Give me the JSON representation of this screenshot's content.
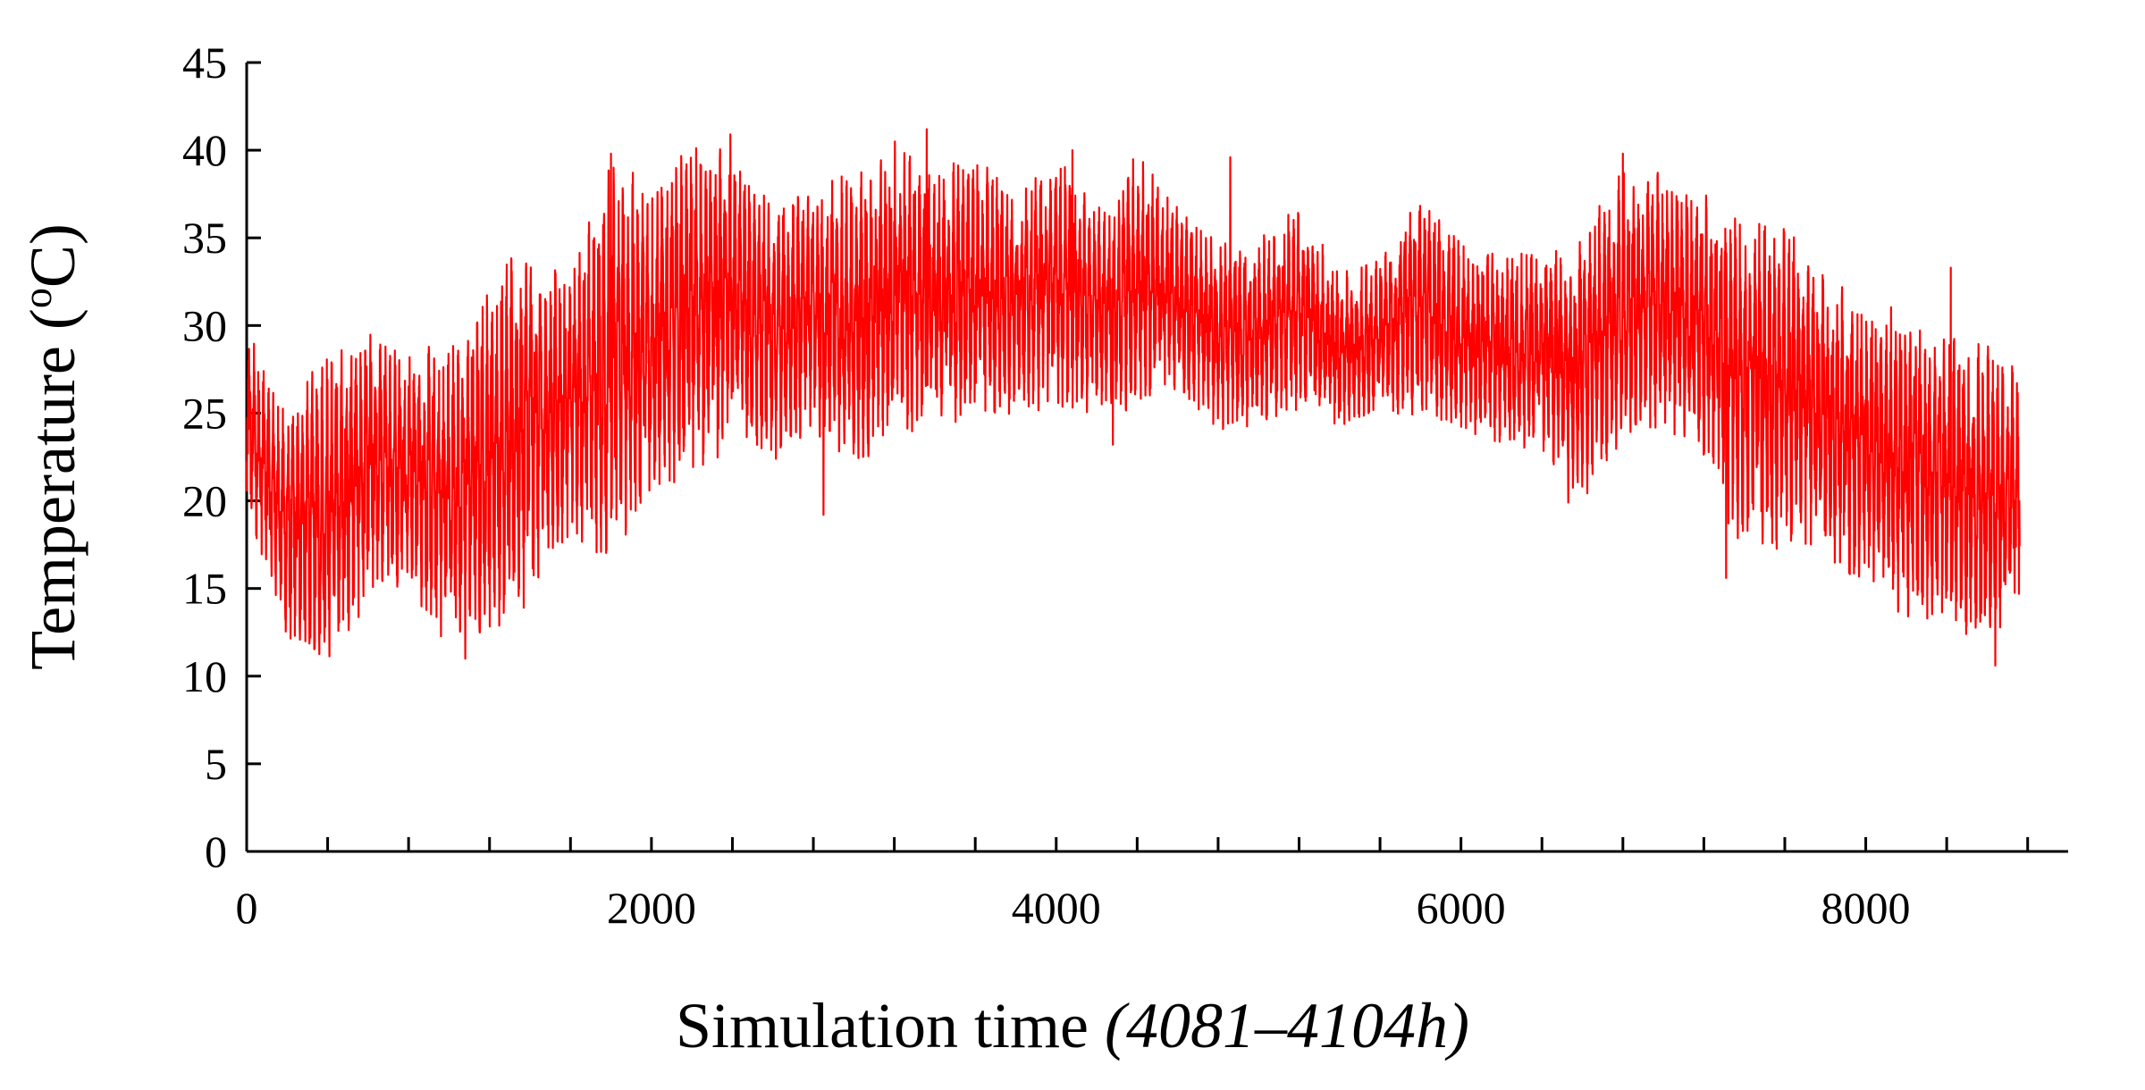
{
  "chart_data": {
    "type": "line",
    "title": "",
    "xlabel": "Simulation time",
    "xlabel_note": "(4081–4104h)",
    "ylabel_prefix": "Temperature (",
    "ylabel_superscript": "o",
    "ylabel_suffix": "C)",
    "xlim": [
      0,
      9000
    ],
    "ylim": [
      0,
      45
    ],
    "x_ticks": [
      0,
      2000,
      4000,
      6000,
      8000
    ],
    "y_ticks": [
      0,
      5,
      10,
      15,
      20,
      25,
      30,
      35,
      40,
      45
    ],
    "x_minor_tick_step": 400,
    "x_data_range": [
      0,
      8760
    ],
    "grid": false,
    "legend": "none",
    "series": [
      {
        "color": "#ff0000",
        "x_step_hours": 200,
        "hourly_sampling": true,
        "envelope_upper": [
          30,
          25,
          29,
          30,
          29,
          29,
          33,
          35,
          33,
          40,
          38,
          41,
          40,
          37,
          38,
          39,
          41,
          39,
          40,
          38,
          40,
          37,
          40,
          37,
          35,
          35,
          37,
          33,
          34,
          38,
          35,
          34,
          35,
          36,
          39,
          39,
          38,
          37,
          36,
          33,
          32,
          31,
          30,
          29,
          28
        ],
        "envelope_lower": [
          19,
          12,
          10,
          14,
          15,
          11,
          12,
          14,
          18,
          16,
          20,
          21,
          23,
          22,
          24,
          21,
          23,
          24,
          24,
          25,
          25,
          25,
          25,
          26,
          24,
          24,
          25,
          24,
          25,
          24,
          24,
          23,
          22,
          20,
          23,
          24,
          22,
          16,
          17,
          17,
          14,
          13,
          13,
          11,
          14
        ],
        "low_spikes": [
          {
            "x": 1080,
            "y": 11
          },
          {
            "x": 2850,
            "y": 19.2
          },
          {
            "x": 4280,
            "y": 23.2
          },
          {
            "x": 6530,
            "y": 19.9
          },
          {
            "x": 7310,
            "y": 15.6
          },
          {
            "x": 8640,
            "y": 10.6
          }
        ],
        "high_spikes": [
          {
            "x": 1800,
            "y": 39.8
          },
          {
            "x": 2390,
            "y": 40.9
          },
          {
            "x": 3360,
            "y": 41.2
          },
          {
            "x": 4080,
            "y": 40
          },
          {
            "x": 4860,
            "y": 39.6
          },
          {
            "x": 6800,
            "y": 39.8
          },
          {
            "x": 8420,
            "y": 33.3
          }
        ]
      }
    ]
  }
}
